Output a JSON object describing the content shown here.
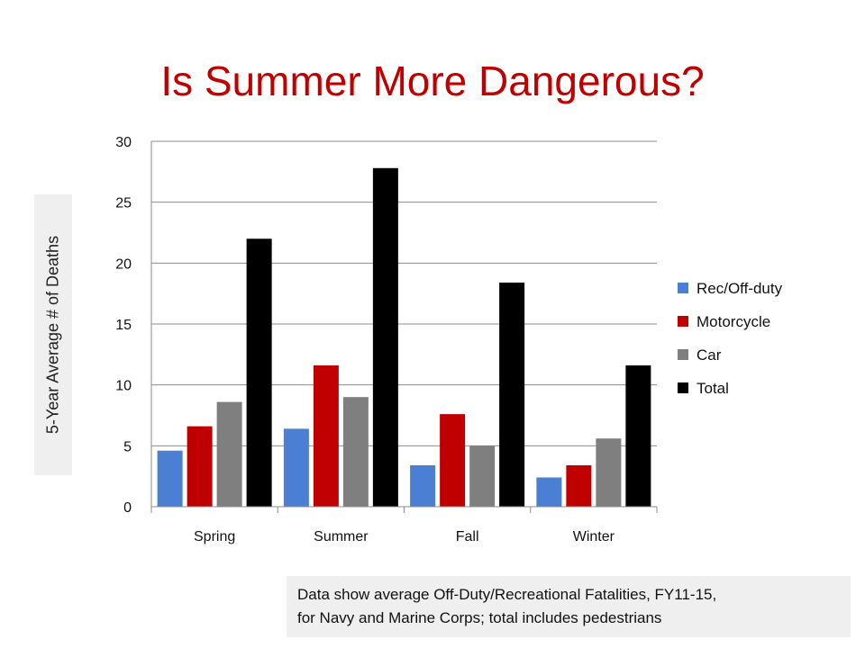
{
  "chart_data": {
    "type": "bar",
    "title": "Is Summer More Dangerous?",
    "ylabel": "5-Year Average # of Deaths",
    "categories": [
      "Spring",
      "Summer",
      "Fall",
      "Winter"
    ],
    "ylim": [
      0,
      30
    ],
    "yticks": [
      0,
      5,
      10,
      15,
      20,
      25,
      30
    ],
    "grid": "horizontal",
    "legend_position": "right",
    "series": [
      {
        "name": "Rec/Off-duty",
        "color": "#4a7fd4",
        "values": [
          4.6,
          6.4,
          3.4,
          2.4
        ]
      },
      {
        "name": "Motorcycle",
        "color": "#c00000",
        "values": [
          6.6,
          11.6,
          7.6,
          3.4
        ]
      },
      {
        "name": "Car",
        "color": "#7f7f7f",
        "values": [
          8.6,
          9.0,
          5.0,
          5.6
        ]
      },
      {
        "name": "Total",
        "color": "#000000",
        "values": [
          22.0,
          27.8,
          18.4,
          11.6
        ]
      }
    ]
  },
  "note": {
    "line1": "Data show average Off-Duty/Recreational Fatalities, FY11-15,",
    "line2": "for Navy and Marine Corps; total includes pedestrians"
  }
}
